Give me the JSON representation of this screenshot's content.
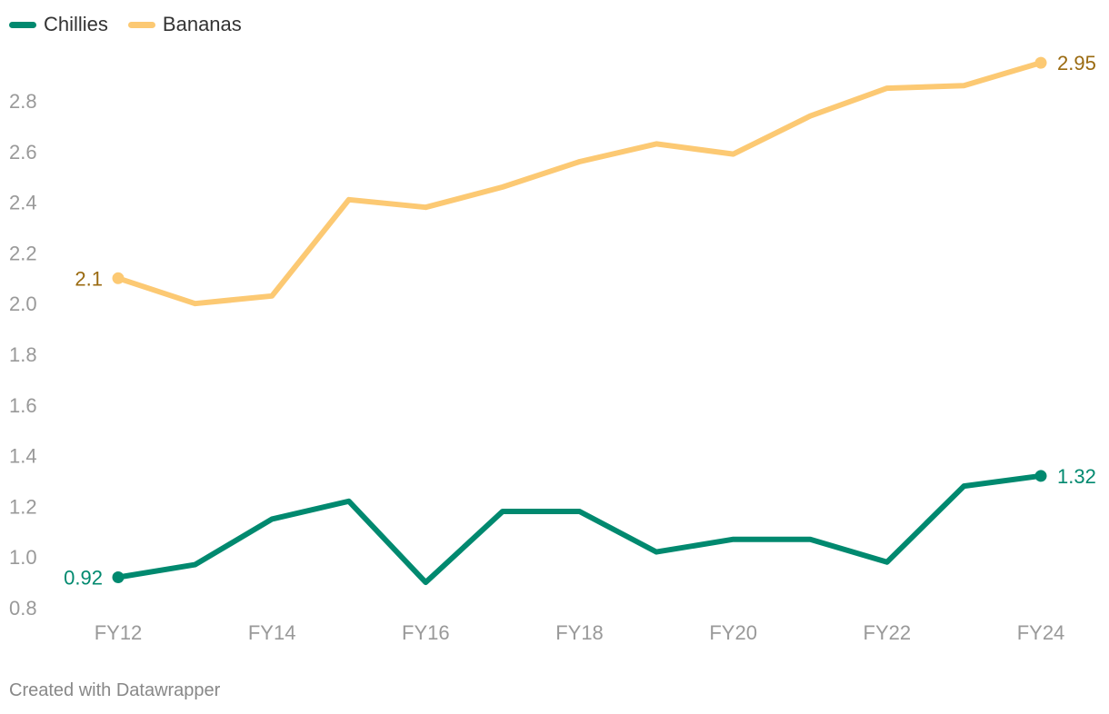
{
  "legend": {
    "items": [
      {
        "label": "Chillies",
        "color": "#00896f"
      },
      {
        "label": "Bananas",
        "color": "#fcc973"
      }
    ]
  },
  "footer": {
    "credit": "Created with Datawrapper"
  },
  "colors": {
    "chillies_line": "#00896f",
    "chillies_label": "#00896f",
    "bananas_line": "#fcc973",
    "bananas_label": "#9a6a10",
    "axis_text": "#999999"
  },
  "chart_data": {
    "type": "line",
    "x": [
      "FY12",
      "FY13",
      "FY14",
      "FY15",
      "FY16",
      "FY17",
      "FY18",
      "FY19",
      "FY20",
      "FY21",
      "FY22",
      "FY23",
      "FY24"
    ],
    "xtick_labels": [
      "FY12",
      "FY14",
      "FY16",
      "FY18",
      "FY20",
      "FY22",
      "FY24"
    ],
    "ylim": [
      0.8,
      3.0
    ],
    "yticks": [
      "0.8",
      "1.0",
      "1.2",
      "1.4",
      "1.6",
      "1.8",
      "2.0",
      "2.2",
      "2.4",
      "2.6",
      "2.8"
    ],
    "grid": false,
    "legend_position": "top-left",
    "series": [
      {
        "name": "Chillies",
        "color": "#00896f",
        "values": [
          0.92,
          0.97,
          1.15,
          1.22,
          0.9,
          1.18,
          1.18,
          1.02,
          1.07,
          1.07,
          0.98,
          1.28,
          1.32
        ],
        "start_label": "0.92",
        "end_label": "1.32"
      },
      {
        "name": "Bananas",
        "color": "#fcc973",
        "values": [
          2.1,
          2.0,
          2.03,
          2.41,
          2.38,
          2.46,
          2.56,
          2.63,
          2.59,
          2.74,
          2.85,
          2.86,
          2.95
        ],
        "start_label": "2.1",
        "end_label": "2.95"
      }
    ]
  }
}
